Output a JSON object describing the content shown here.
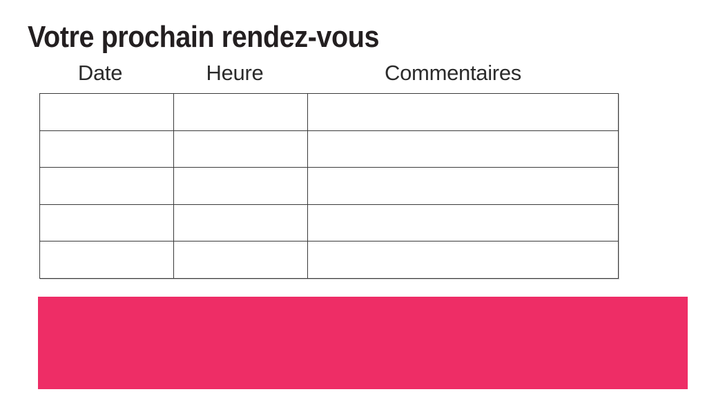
{
  "title": "Votre prochain rendez-vous",
  "colors": {
    "background": "#FFFFFF",
    "text": "#231F20",
    "table_border": "#3A3A3A",
    "banner": "#EE2D66"
  },
  "table": {
    "columns": [
      {
        "label": "Date"
      },
      {
        "label": "Heure"
      },
      {
        "label": "Commentaires"
      }
    ],
    "rows": [
      [
        "",
        "",
        ""
      ],
      [
        "",
        "",
        ""
      ],
      [
        "",
        "",
        ""
      ],
      [
        "",
        "",
        ""
      ],
      [
        "",
        "",
        ""
      ]
    ]
  },
  "banner": {
    "label": ""
  }
}
